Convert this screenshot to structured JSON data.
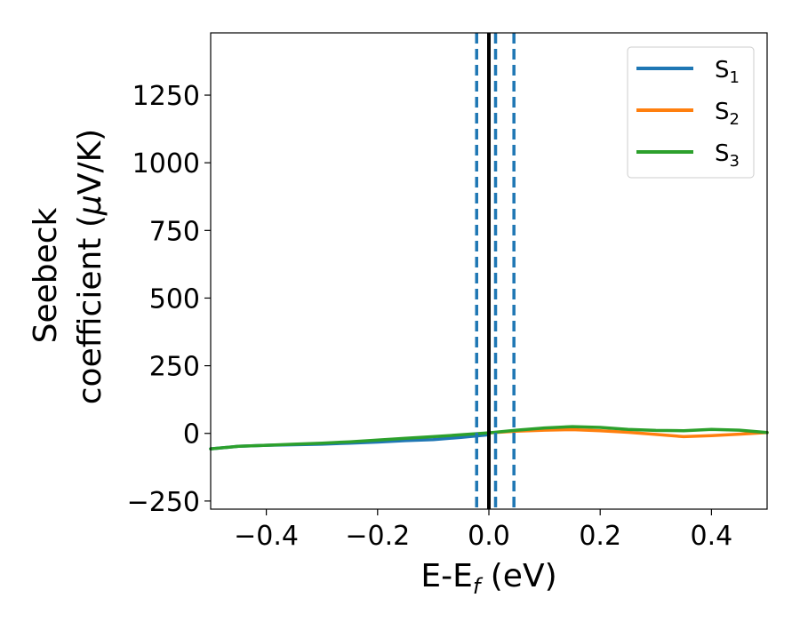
{
  "chart_data": {
    "type": "line",
    "title": "",
    "xlabel": {
      "main": "E-E",
      "sub": "f",
      "rest": " (eV)"
    },
    "ylabel": {
      "line1": "Seebeck",
      "line2_pre": "coefficient  (",
      "line2_mu": "μ",
      "line2_post": "V/K)"
    },
    "xlim": [
      -0.5,
      0.5
    ],
    "ylim": [
      -280,
      1480
    ],
    "xticks": [
      -0.4,
      -0.2,
      0.0,
      0.2,
      0.4
    ],
    "xtick_labels": [
      "−0.4",
      "−0.2",
      "0.0",
      "0.2",
      "0.4"
    ],
    "yticks": [
      -250,
      0,
      250,
      500,
      750,
      1000,
      1250
    ],
    "ytick_labels": [
      "−250",
      "0",
      "250",
      "500",
      "750",
      "1000",
      "1250"
    ],
    "grid": false,
    "legend_position": "top-right",
    "series": [
      {
        "name": "S",
        "sub": "1",
        "color": "#1f77b4",
        "x": [
          -0.5,
          -0.45,
          -0.4,
          -0.35,
          -0.3,
          -0.25,
          -0.2,
          -0.15,
          -0.1,
          -0.05,
          0.0
        ],
        "y": [
          -57,
          -48,
          -44,
          -42,
          -40,
          -36,
          -32,
          -27,
          -23,
          -15,
          -5
        ]
      },
      {
        "name": "S",
        "sub": "2",
        "color": "#ff7f0e",
        "x": [
          0.0,
          0.05,
          0.1,
          0.15,
          0.2,
          0.25,
          0.3,
          0.35,
          0.4,
          0.45,
          0.5
        ],
        "y": [
          2,
          8,
          12,
          14,
          10,
          4,
          -4,
          -12,
          -8,
          -3,
          3
        ]
      },
      {
        "name": "S",
        "sub": "3",
        "color": "#2ca02c",
        "x": [
          -0.5,
          -0.45,
          -0.4,
          -0.35,
          -0.3,
          -0.25,
          -0.2,
          -0.15,
          -0.1,
          -0.05,
          0.0,
          0.05,
          0.1,
          0.15,
          0.2,
          0.25,
          0.3,
          0.35,
          0.4,
          0.45,
          0.5
        ],
        "y": [
          -57,
          -48,
          -44,
          -40,
          -36,
          -31,
          -25,
          -18,
          -12,
          -5,
          2,
          12,
          20,
          25,
          22,
          15,
          11,
          10,
          15,
          12,
          3
        ]
      }
    ],
    "vertical_lines": [
      {
        "x": 0.0,
        "style": "solid",
        "color": "#000000"
      },
      {
        "x": -0.022,
        "style": "dashed",
        "color": "#1f77b4"
      },
      {
        "x": 0.012,
        "style": "dashed",
        "color": "#1f77b4"
      },
      {
        "x": 0.045,
        "style": "dashed",
        "color": "#1f77b4"
      }
    ]
  }
}
